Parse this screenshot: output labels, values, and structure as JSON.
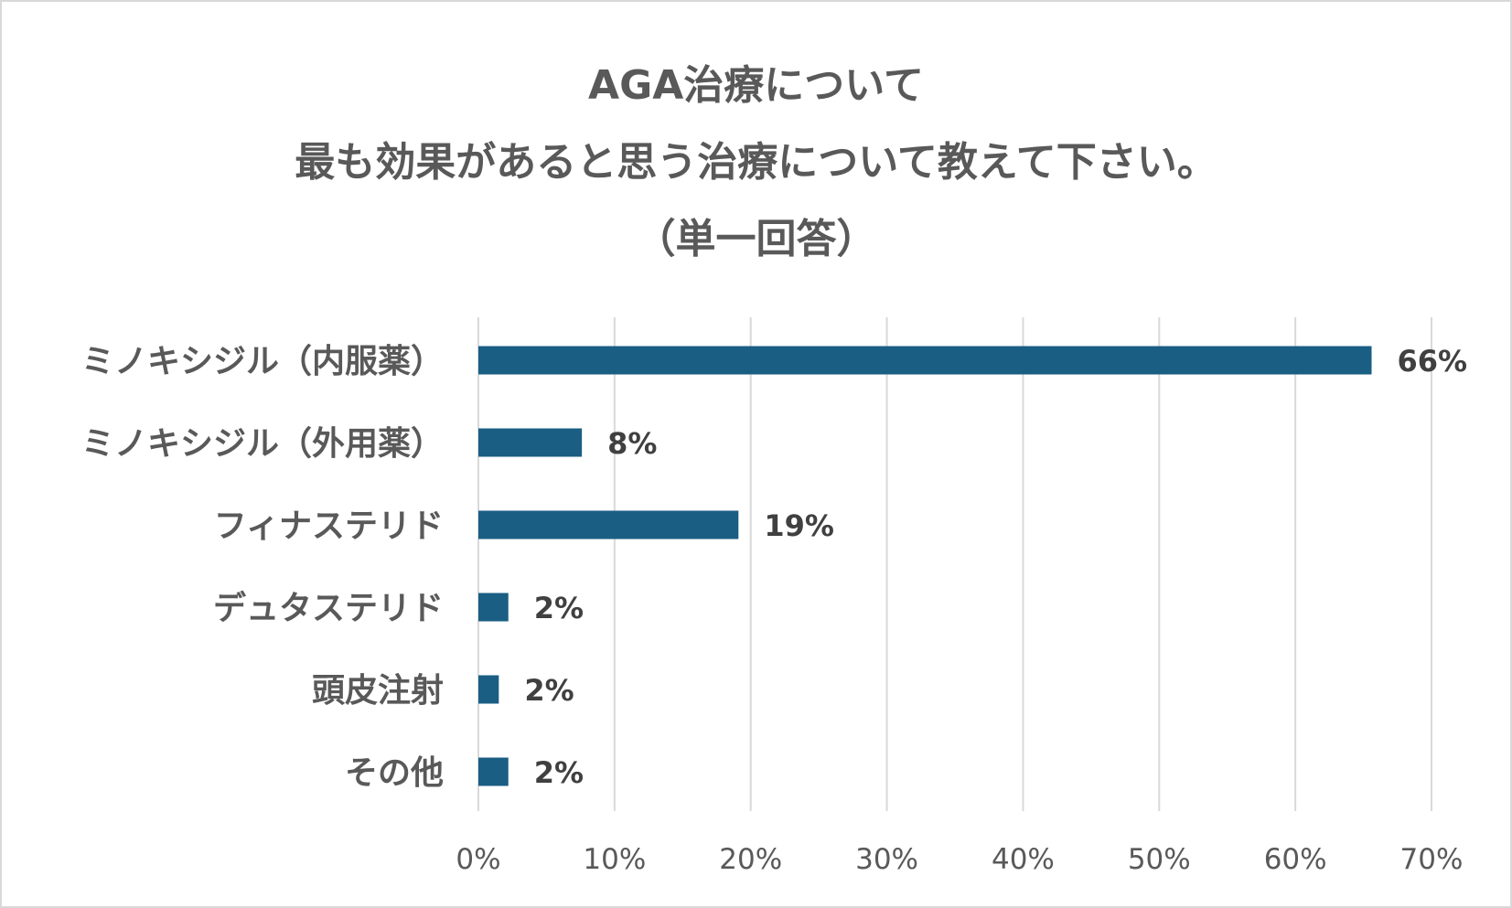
{
  "chart_data": {
    "type": "bar",
    "orientation": "horizontal",
    "title_lines": [
      "AGA治療について",
      "最も効果があると思う治療について教えて下さい。",
      "（単一回答）"
    ],
    "categories": [
      "ミノキシジル（内服薬）",
      "ミノキシジル（外用薬）",
      "フィナステリド",
      "デュタステリド",
      "頭皮注射",
      "その他"
    ],
    "values": [
      65.6,
      7.6,
      19.1,
      2.2,
      1.5,
      2.2
    ],
    "value_labels": [
      "66%",
      "8%",
      "19%",
      "2%",
      "2%",
      "2%"
    ],
    "xlim": [
      0,
      70
    ],
    "x_ticks": [
      0,
      10,
      20,
      30,
      40,
      50,
      60,
      70
    ],
    "x_tick_labels": [
      "0%",
      "10%",
      "20%",
      "30%",
      "40%",
      "50%",
      "60%",
      "70%"
    ],
    "grid": "vertical",
    "legend": "none",
    "colors": {
      "bar": "#1a5e83",
      "grid": "#d9d9d9",
      "text": "#595959",
      "value_label": "#404040",
      "border": "#d9d9d9"
    }
  }
}
